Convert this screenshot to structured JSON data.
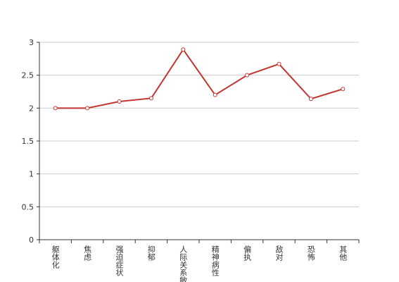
{
  "chart_data": {
    "type": "line",
    "categories": [
      "躯体化",
      "焦虑",
      "强迫症状",
      "抑郁",
      "人际关系敏感",
      "精神病性",
      "偏执",
      "敌对",
      "恐怖",
      "其他"
    ],
    "series": [
      {
        "color": "#c23531",
        "values": [
          2.0,
          2.0,
          2.1,
          2.15,
          2.89,
          2.2,
          2.5,
          2.67,
          2.14,
          2.29
        ]
      }
    ],
    "ylim": [
      0,
      3
    ],
    "yticks": [
      0,
      0.5,
      1,
      1.5,
      2,
      2.5,
      3
    ],
    "grid": true
  }
}
